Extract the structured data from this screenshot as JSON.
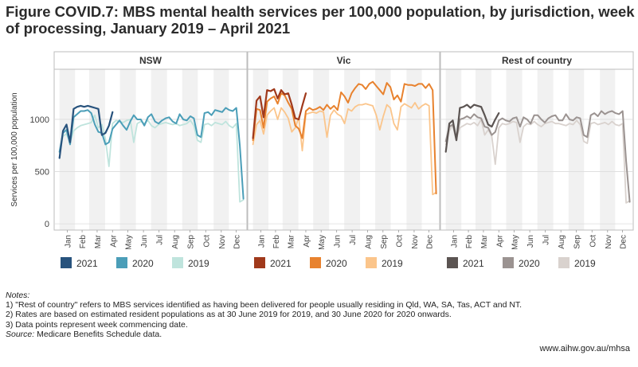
{
  "title": "Figure COVID.7: MBS mental health services per 100,000 population, by jurisdiction, week of processing, January 2019 – April 2021",
  "notes": {
    "heading": "Notes:",
    "items": [
      "1) \"Rest of country\" refers to MBS services identified as having been delivered for people usually residing in Qld, WA, SA, Tas, ACT and NT.",
      "2) Rates are based on estimated resident populations as at 30 June 2019 for 2019, and 30 June 2020 for 2020 onwards.",
      "3) Data points represent week commencing date."
    ],
    "source_label": "Source:",
    "source_text": " Medicare Benefits Schedule data."
  },
  "url": "www.aihw.gov.au/mhsa",
  "chart_data": {
    "type": "line",
    "ylabel": "Services per 100,000 population",
    "yticks": [
      0,
      500,
      1000
    ],
    "ylim": [
      -60,
      1480
    ],
    "x_unit": "week of year",
    "xlim": [
      -1.5,
      53
    ],
    "months": [
      "Jan",
      "Feb",
      "Mar",
      "Apr",
      "May",
      "Jun",
      "Jul",
      "Aug",
      "Sep",
      "Oct",
      "Nov",
      "Dec"
    ],
    "month_starts": [
      0,
      4.4,
      8.4,
      12.9,
      17.1,
      21.6,
      25.9,
      30.4,
      34.7,
      39.1,
      43.6,
      47.9
    ],
    "legend_years": [
      "2021",
      "2020",
      "2019"
    ],
    "panels": [
      {
        "name": "NSW",
        "colors": {
          "2021": "#28537d",
          "2020": "#4b9eb8",
          "2019": "#bfe4dd"
        },
        "series": [
          {
            "name": "2019",
            "x": [
              0,
              1,
              2,
              3,
              4,
              5,
              6,
              7,
              8,
              9,
              10,
              11,
              12,
              13,
              14,
              15,
              16,
              17,
              18,
              19,
              20,
              21,
              22,
              23,
              24,
              25,
              26,
              27,
              28,
              29,
              30,
              31,
              32,
              33,
              34,
              35,
              36,
              37,
              38,
              39,
              40,
              41,
              42,
              43,
              44,
              45,
              46,
              47,
              48,
              49,
              50,
              51,
              52
            ],
            "y": [
              680,
              840,
              860,
              780,
              890,
              920,
              940,
              950,
              960,
              970,
              1040,
              920,
              950,
              810,
              550,
              960,
              990,
              980,
              970,
              990,
              1000,
              780,
              960,
              980,
              960,
              990,
              940,
              920,
              950,
              960,
              970,
              960,
              950,
              960,
              940,
              950,
              960,
              990,
              940,
              800,
              780,
              950,
              960,
              940,
              970,
              960,
              950,
              980,
              940,
              920,
              960,
              210,
              230
            ]
          },
          {
            "name": "2020",
            "x": [
              0,
              1,
              2,
              3,
              4,
              5,
              6,
              7,
              8,
              9,
              10,
              11,
              12,
              13,
              14,
              15,
              16,
              17,
              18,
              19,
              20,
              21,
              22,
              23,
              24,
              25,
              26,
              27,
              28,
              29,
              30,
              31,
              32,
              33,
              34,
              35,
              36,
              37,
              38,
              39,
              40,
              41,
              42,
              43,
              44,
              45,
              46,
              47,
              48,
              49,
              50,
              51,
              52
            ],
            "y": [
              690,
              870,
              900,
              760,
              1020,
              1050,
              1080,
              1080,
              1090,
              1060,
              950,
              880,
              870,
              760,
              780,
              910,
              950,
              990,
              940,
              900,
              980,
              1040,
              1000,
              1000,
              940,
              1020,
              1050,
              980,
              960,
              990,
              1010,
              1020,
              980,
              960,
              1050,
              1000,
              990,
              1030,
              1010,
              850,
              830,
              1060,
              1070,
              1040,
              1090,
              1080,
              1070,
              1110,
              1090,
              1080,
              1110,
              750,
              240
            ]
          },
          {
            "name": "2021",
            "x": [
              0,
              1,
              2,
              3,
              4,
              5,
              6,
              7,
              8,
              9,
              10,
              11,
              12,
              13,
              14,
              15
            ],
            "y": [
              630,
              890,
              950,
              780,
              1100,
              1120,
              1130,
              1120,
              1130,
              1120,
              1110,
              1100,
              850,
              870,
              940,
              1070
            ]
          }
        ]
      },
      {
        "name": "Vic",
        "colors": {
          "2021": "#a0391b",
          "2020": "#e8822e",
          "2019": "#fbc58b"
        },
        "series": [
          {
            "name": "2019",
            "x": [
              0,
              1,
              2,
              3,
              4,
              5,
              6,
              7,
              8,
              9,
              10,
              11,
              12,
              13,
              14,
              15,
              16,
              17,
              18,
              19,
              20,
              21,
              22,
              23,
              24,
              25,
              26,
              27,
              28,
              29,
              30,
              31,
              32,
              33,
              34,
              35,
              36,
              37,
              38,
              39,
              40,
              41,
              42,
              43,
              44,
              45,
              46,
              47,
              48,
              49,
              50,
              51,
              52
            ],
            "y": [
              760,
              950,
              990,
              860,
              1040,
              1080,
              1110,
              1000,
              1110,
              1070,
              1010,
              880,
              920,
              1020,
              700,
              1050,
              1060,
              1070,
              1060,
              1080,
              1070,
              830,
              1040,
              1090,
              1050,
              1030,
              960,
              1100,
              1080,
              1120,
              1140,
              1140,
              1150,
              1140,
              1130,
              1040,
              900,
              1030,
              1140,
              1110,
              960,
              900,
              1120,
              1150,
              1130,
              1110,
              1160,
              1100,
              1130,
              1150,
              1130,
              280,
              300
            ]
          },
          {
            "name": "2020",
            "x": [
              0,
              1,
              2,
              3,
              4,
              5,
              6,
              7,
              8,
              9,
              10,
              11,
              12,
              13,
              14,
              15,
              16,
              17,
              18,
              19,
              20,
              21,
              22,
              23,
              24,
              25,
              26,
              27,
              28,
              29,
              30,
              31,
              32,
              33,
              34,
              35,
              36,
              37,
              38,
              39,
              40,
              41,
              42,
              43,
              44,
              45,
              46,
              47,
              48,
              49,
              50,
              51,
              52
            ],
            "y": [
              800,
              1100,
              1090,
              920,
              1170,
              1200,
              1220,
              1150,
              1250,
              1230,
              1160,
              1100,
              940,
              910,
              820,
              1080,
              1110,
              1090,
              1100,
              1120,
              1090,
              1140,
              1100,
              1130,
              1090,
              1260,
              1220,
              1160,
              1250,
              1300,
              1340,
              1330,
              1290,
              1340,
              1360,
              1320,
              1280,
              1240,
              1350,
              1310,
              1190,
              1230,
              1170,
              1340,
              1330,
              1330,
              1320,
              1340,
              1340,
              1300,
              1340,
              1280,
              290
            ]
          },
          {
            "name": "2021",
            "x": [
              0,
              1,
              2,
              3,
              4,
              5,
              6,
              7,
              8,
              9,
              10,
              11,
              12,
              13,
              14,
              15
            ],
            "y": [
              820,
              1180,
              1220,
              1020,
              1280,
              1270,
              1290,
              1200,
              1280,
              1240,
              1250,
              1140,
              1010,
              1000,
              1130,
              1250
            ]
          }
        ]
      },
      {
        "name": "Rest of country",
        "colors": {
          "2021": "#5b5452",
          "2020": "#9b9391",
          "2019": "#d9d2ce"
        },
        "series": [
          {
            "name": "2019",
            "x": [
              0,
              1,
              2,
              3,
              4,
              5,
              6,
              7,
              8,
              9,
              10,
              11,
              12,
              13,
              14,
              15,
              16,
              17,
              18,
              19,
              20,
              21,
              22,
              23,
              24,
              25,
              26,
              27,
              28,
              29,
              30,
              31,
              32,
              33,
              34,
              35,
              36,
              37,
              38,
              39,
              40,
              41,
              42,
              43,
              44,
              45,
              46,
              47,
              48,
              49,
              50,
              51,
              52
            ],
            "y": [
              760,
              890,
              950,
              830,
              920,
              940,
              960,
              950,
              970,
              940,
              1000,
              850,
              900,
              840,
              570,
              920,
              960,
              950,
              960,
              980,
              970,
              780,
              930,
              960,
              950,
              980,
              950,
              930,
              960,
              970,
              980,
              960,
              960,
              950,
              940,
              960,
              950,
              990,
              950,
              790,
              770,
              960,
              970,
              950,
              960,
              970,
              950,
              980,
              950,
              940,
              960,
              200,
              220
            ]
          },
          {
            "name": "2020",
            "x": [
              0,
              1,
              2,
              3,
              4,
              5,
              6,
              7,
              8,
              9,
              10,
              11,
              12,
              13,
              14,
              15,
              16,
              17,
              18,
              19,
              20,
              21,
              22,
              23,
              24,
              25,
              26,
              27,
              28,
              29,
              30,
              31,
              32,
              33,
              34,
              35,
              36,
              37,
              38,
              39,
              40,
              41,
              42,
              43,
              44,
              45,
              46,
              47,
              48,
              49,
              50,
              51,
              52
            ],
            "y": [
              790,
              930,
              950,
              800,
              1000,
              1010,
              1030,
              1010,
              1050,
              1020,
              1010,
              930,
              920,
              850,
              880,
              990,
              1010,
              990,
              980,
              1010,
              1020,
              930,
              1020,
              1000,
              960,
              1040,
              1040,
              1000,
              970,
              1010,
              1030,
              1040,
              990,
              990,
              1050,
              1000,
              990,
              1020,
              1010,
              850,
              830,
              1040,
              1060,
              1030,
              1080,
              1050,
              1070,
              1080,
              1060,
              1050,
              1080,
              600,
              210
            ]
          },
          {
            "name": "2021",
            "x": [
              0,
              1,
              2,
              3,
              4,
              5,
              6,
              7,
              8,
              9,
              10,
              11,
              12,
              13,
              14,
              15
            ],
            "y": [
              690,
              960,
              990,
              800,
              1110,
              1120,
              1140,
              1110,
              1140,
              1130,
              1120,
              1040,
              950,
              930,
              1000,
              1060
            ]
          }
        ]
      }
    ]
  }
}
